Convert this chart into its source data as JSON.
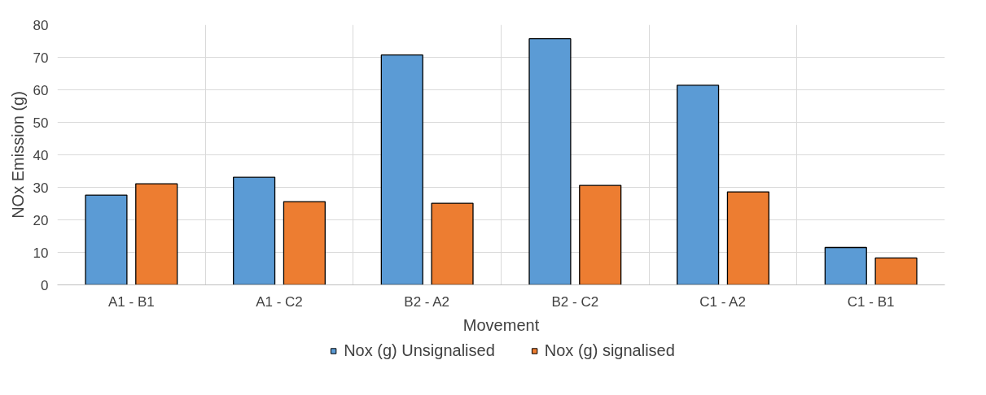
{
  "chart_data": {
    "type": "bar",
    "xlabel": "Movement",
    "ylabel": "NOx Emission (g)",
    "categories": [
      "A1 - B1",
      "A1 - C2",
      "B2 - A2",
      "B2 - C2",
      "C1 - A2",
      "C1 - B1"
    ],
    "series": [
      {
        "name": "Nox (g) Unsignalised",
        "color": "#5b9bd5",
        "values": [
          27.6,
          33.1,
          70.7,
          75.7,
          61.4,
          11.5
        ]
      },
      {
        "name": "Nox (g) signalised",
        "color": "#ed7d31",
        "values": [
          31.1,
          25.6,
          25.1,
          30.6,
          28.6,
          8.3
        ]
      }
    ],
    "ylim": [
      0,
      80
    ],
    "yticks": [
      0,
      10,
      20,
      30,
      40,
      50,
      60,
      70,
      80
    ],
    "grid": true,
    "legend": "bottom"
  }
}
